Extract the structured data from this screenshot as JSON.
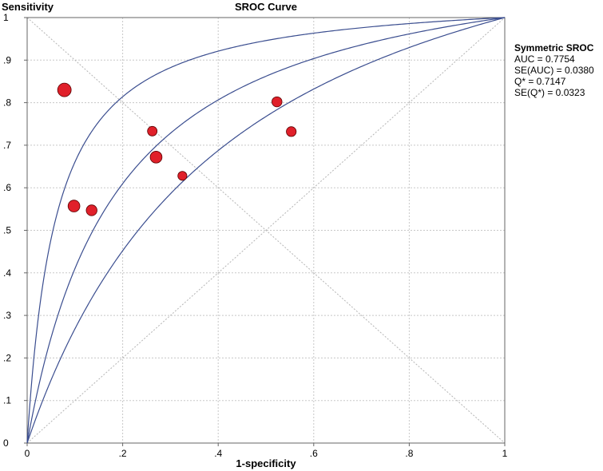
{
  "chart_data": {
    "type": "scatter",
    "title": "SROC Curve",
    "ylabel": "Sensitivity",
    "xlabel": "1-specificity",
    "xlim": [
      0,
      1
    ],
    "ylim": [
      0,
      1
    ],
    "x_ticks": [
      0,
      0.2,
      0.4,
      0.6,
      0.8,
      1
    ],
    "x_tick_labels": [
      "0",
      ".2",
      ".4",
      ".6",
      ".8",
      "1"
    ],
    "y_ticks": [
      0,
      0.1,
      0.2,
      0.3,
      0.4,
      0.5,
      0.6,
      0.7,
      0.8,
      0.9,
      1
    ],
    "y_tick_labels": [
      "0",
      ".1",
      ".2",
      ".3",
      ".4",
      ".5",
      ".6",
      ".7",
      ".8",
      ".9",
      "1"
    ],
    "grid": true,
    "point_color": "#e0202a",
    "curve_color": "#3a4d8f",
    "points": [
      {
        "x": 0.078,
        "y": 0.83,
        "weight": 3
      },
      {
        "x": 0.098,
        "y": 0.557,
        "weight": 2
      },
      {
        "x": 0.135,
        "y": 0.547,
        "weight": 1.5
      },
      {
        "x": 0.262,
        "y": 0.733,
        "weight": 1
      },
      {
        "x": 0.27,
        "y": 0.672,
        "weight": 2
      },
      {
        "x": 0.325,
        "y": 0.628,
        "weight": 0.8
      },
      {
        "x": 0.523,
        "y": 0.802,
        "weight": 1.2
      },
      {
        "x": 0.553,
        "y": 0.732,
        "weight": 1.1
      }
    ],
    "curves": [
      {
        "diagnostic_odds_ratio": 17.5
      },
      {
        "diagnostic_odds_ratio": 6.25
      },
      {
        "diagnostic_odds_ratio": 3.3
      }
    ],
    "reference_lines": [
      "diagonal",
      "anti-diagonal"
    ]
  },
  "stats": {
    "heading": "Symmetric SROC",
    "auc": "AUC = 0.7754",
    "se_auc": "SE(AUC) = 0.0380",
    "q_star": "Q* = 0.7147",
    "se_q_star": "SE(Q*) = 0.0323"
  }
}
